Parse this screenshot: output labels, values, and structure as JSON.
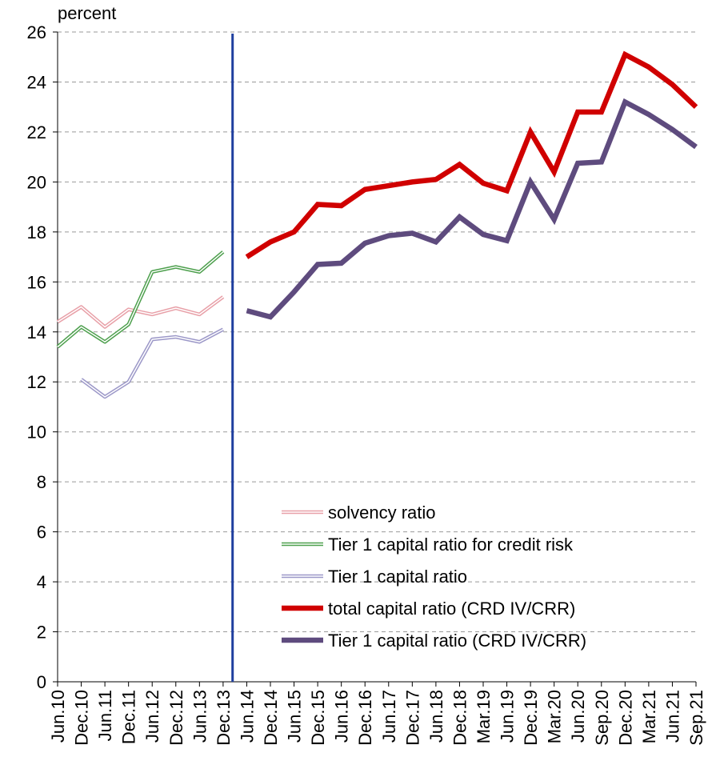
{
  "chart_data": {
    "type": "line",
    "y_label": "percent",
    "categories": [
      "Jun.10",
      "Dec.10",
      "Jun.11",
      "Dec.11",
      "Jun.12",
      "Dec.12",
      "Jun.13",
      "Dec.13",
      "Jun.14",
      "Dec.14",
      "Jun.15",
      "Dec.15",
      "Jun.16",
      "Dec.16",
      "Jun.17",
      "Dec.17",
      "Jun.18",
      "Dec.18",
      "Mar.19",
      "Jun.19",
      "Dec.19",
      "Mar.20",
      "Jun.20",
      "Sep.20",
      "Dec.20",
      "Mar.21",
      "Jun.21",
      "Sep.21"
    ],
    "series": [
      {
        "name": "solvency ratio",
        "color": "#e8a0a8",
        "style": "double",
        "values": [
          14.4,
          15.0,
          14.2,
          14.9,
          14.7,
          14.95,
          14.7,
          15.4,
          null,
          null,
          null,
          null,
          null,
          null,
          null,
          null,
          null,
          null,
          null,
          null,
          null,
          null,
          null,
          null,
          null,
          null,
          null,
          null
        ]
      },
      {
        "name": "Tier 1 capital ratio for credit risk",
        "color": "#4ea04e",
        "style": "double",
        "values": [
          13.4,
          14.2,
          13.6,
          14.3,
          16.4,
          16.6,
          16.4,
          17.2,
          null,
          null,
          null,
          null,
          null,
          null,
          null,
          null,
          null,
          null,
          null,
          null,
          null,
          null,
          null,
          null,
          null,
          null,
          null,
          null
        ]
      },
      {
        "name": "Tier 1 capital ratio",
        "color": "#9c98c8",
        "style": "double",
        "values": [
          null,
          12.1,
          11.4,
          12.0,
          13.7,
          13.8,
          13.6,
          14.1,
          null,
          null,
          null,
          null,
          null,
          null,
          null,
          null,
          null,
          null,
          null,
          null,
          null,
          null,
          null,
          null,
          null,
          null,
          null,
          null
        ]
      },
      {
        "name": "total capital ratio (CRD IV/CRR)",
        "color": "#d00000",
        "style": "thick",
        "values": [
          null,
          null,
          null,
          null,
          null,
          null,
          null,
          null,
          17.0,
          17.6,
          18.0,
          19.1,
          19.05,
          19.7,
          19.85,
          20.0,
          20.1,
          20.7,
          19.95,
          19.65,
          22.0,
          20.4,
          22.8,
          22.8,
          25.1,
          24.6,
          23.9,
          23.0
        ]
      },
      {
        "name": "Tier 1 capital ratio (CRD IV/CRR)",
        "color": "#5e4b7e",
        "style": "thick",
        "values": [
          null,
          null,
          null,
          null,
          null,
          null,
          null,
          null,
          14.85,
          14.6,
          15.6,
          16.7,
          16.75,
          17.55,
          17.85,
          17.95,
          17.6,
          18.6,
          17.9,
          17.65,
          20.0,
          18.5,
          20.75,
          20.8,
          23.2,
          22.7,
          22.1,
          21.4
        ]
      }
    ],
    "ylim": [
      0,
      26
    ],
    "yticks": [
      0,
      2,
      4,
      6,
      8,
      10,
      12,
      14,
      16,
      18,
      20,
      22,
      24,
      26
    ],
    "grid": true,
    "legend": "lower right"
  }
}
